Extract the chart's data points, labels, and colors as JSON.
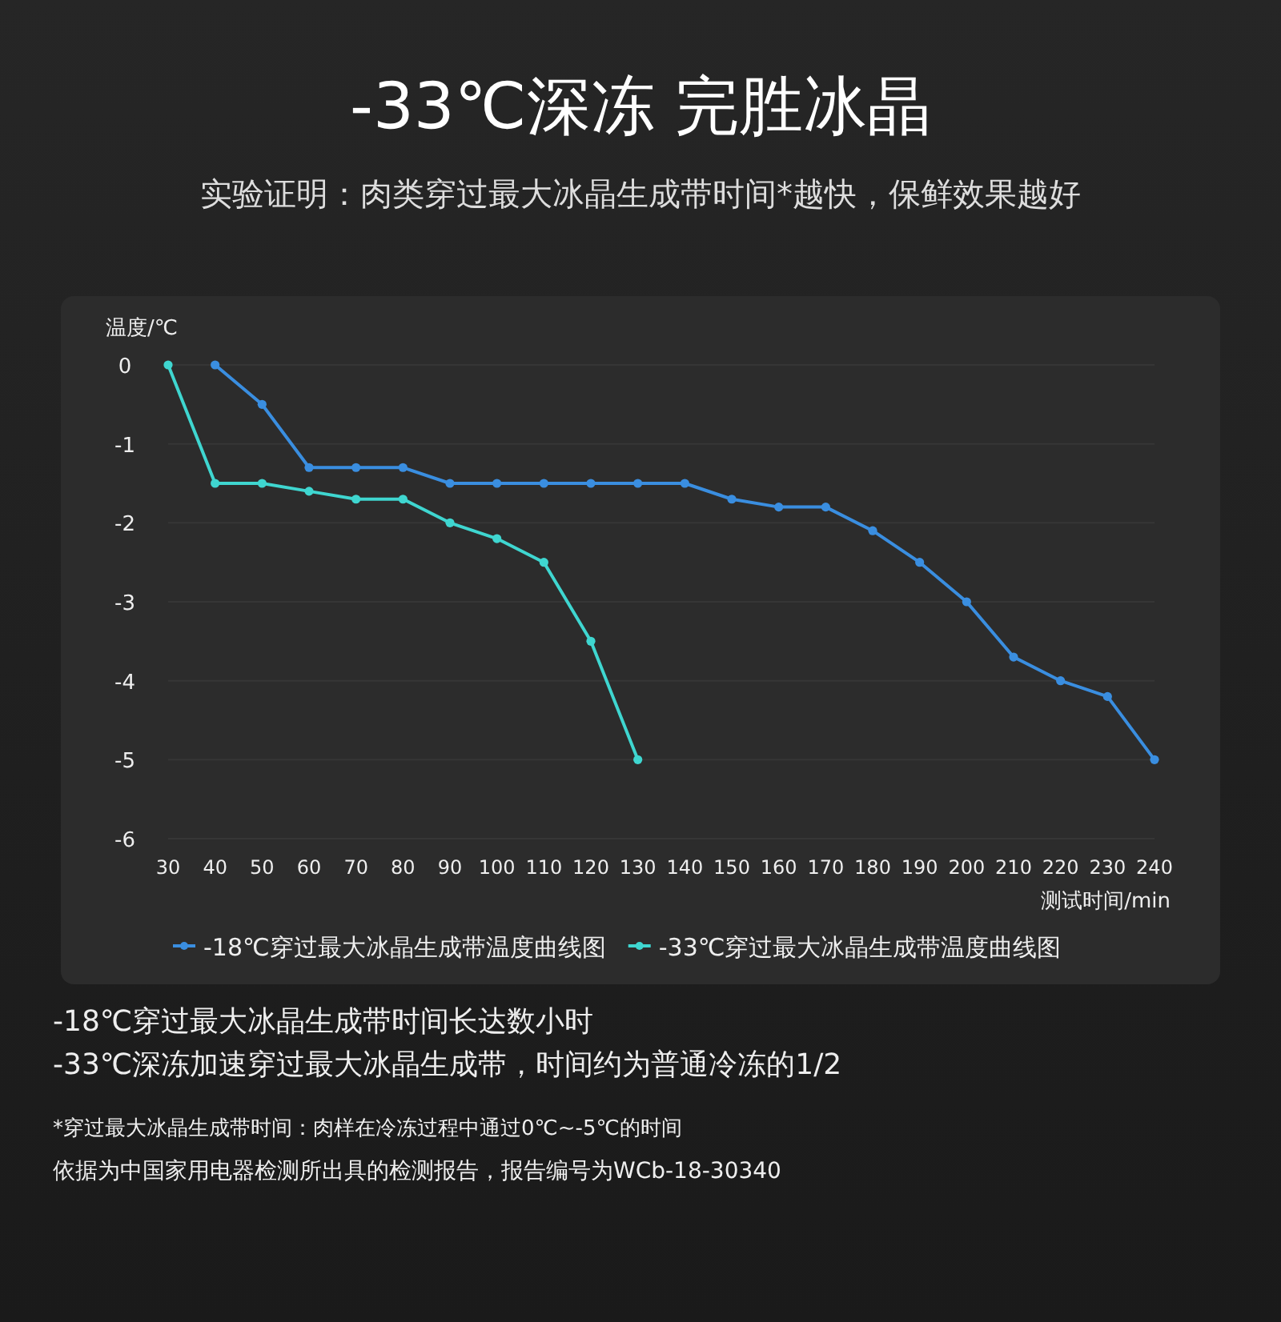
{
  "chart_data": {
    "type": "line",
    "title": "-33℃深冻  完胜冰晶",
    "subtitle": "实验证明：肉类穿过最大冰晶生成带时间*越快，保鲜效果越好",
    "ylabel": "温度/℃",
    "xlabel": "测试时间/min",
    "xlim": [
      30,
      240
    ],
    "xticks": [
      30,
      40,
      50,
      60,
      70,
      80,
      90,
      100,
      110,
      120,
      130,
      140,
      150,
      160,
      170,
      180,
      190,
      200,
      210,
      220,
      230,
      240
    ],
    "ylim": [
      -6,
      0
    ],
    "yticks": [
      -6,
      -5,
      -4,
      -3,
      -2,
      -1,
      0
    ],
    "grid": "y",
    "legend": "bottom",
    "marker": "circle",
    "line_style": "solid",
    "series": [
      {
        "name": "-18℃穿过最大冰晶生成带温度曲线图",
        "color": "#3a8ee0",
        "x": [
          40,
          50,
          60,
          70,
          80,
          90,
          100,
          110,
          120,
          130,
          140,
          150,
          160,
          170,
          180,
          190,
          200,
          210,
          220,
          230,
          240
        ],
        "values": [
          0,
          -0.5,
          -1.3,
          -1.3,
          -1.3,
          -1.5,
          -1.5,
          -1.5,
          -1.5,
          -1.5,
          -1.5,
          -1.7,
          -1.8,
          -1.8,
          -2.1,
          -2.5,
          -3,
          -3.7,
          -4,
          -4.2,
          -5
        ]
      },
      {
        "name": "-33℃穿过最大冰晶生成带温度曲线图",
        "color": "#3fd6d0",
        "x": [
          30,
          40,
          50,
          60,
          70,
          80,
          90,
          100,
          110,
          120,
          130
        ],
        "values": [
          0,
          -1.5,
          -1.5,
          -1.6,
          -1.7,
          -1.7,
          -2,
          -2.2,
          -2.5,
          -3.5,
          -5
        ]
      }
    ],
    "annotations": [
      "-18℃穿过最大冰晶生成带时间长达数小时",
      "-33℃深冻加速穿过最大冰晶生成带，时间约为普通冷冻的1/2",
      "*穿过最大冰晶生成带时间：肉样在冷冻过程中通过0℃~-5℃的时间",
      "依据为中国家用电器检测所出具的检测报告，报告编号为WCb-18-30340"
    ]
  }
}
